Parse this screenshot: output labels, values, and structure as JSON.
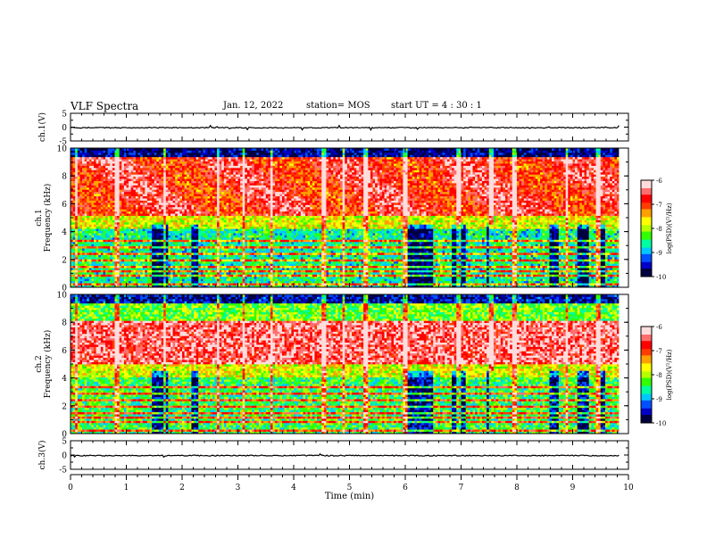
{
  "header": {
    "title": "VLF Spectra",
    "date": "Jan. 12, 2022",
    "station": "station= MOS",
    "start_ut": "start UT =  4 : 30 : 1"
  },
  "colors": {
    "scale": [
      "#000040",
      "#0000c8",
      "#0050ff",
      "#00c8ff",
      "#00ffa0",
      "#32ff00",
      "#b4ff00",
      "#ffff00",
      "#ffa000",
      "#ff3c00",
      "#ff0000",
      "#ff6e6e",
      "#ffdcdc"
    ]
  },
  "chart_data": [
    {
      "type": "line",
      "name": "ch1-waveform",
      "ylabel": "ch.1(V)",
      "ylim": [
        -5,
        5
      ],
      "yticks": [
        5,
        0,
        -5
      ],
      "x": [
        0,
        10
      ],
      "y": [
        -0.2,
        -0.2
      ],
      "xlim": [
        0,
        10
      ]
    },
    {
      "type": "heatmap",
      "name": "ch1-spectrogram",
      "ylabel": "ch.1\nFrequency (kHz)",
      "ylim": [
        0,
        10
      ],
      "yticks": [
        0,
        2,
        4,
        6,
        8,
        10
      ],
      "xlim": [
        0,
        9.83
      ],
      "colorbar": {
        "label": "log(PSD)(V²/Hz)",
        "range": [
          -10,
          -6
        ],
        "ticks": [
          -6,
          -7,
          -8,
          -9,
          -10
        ]
      }
    },
    {
      "type": "heatmap",
      "name": "ch2-spectrogram",
      "ylabel": "ch.2\nFrequency (kHz)",
      "ylim": [
        0,
        10
      ],
      "yticks": [
        0,
        2,
        4,
        6,
        8,
        10
      ],
      "xlim": [
        0,
        9.83
      ],
      "colorbar": {
        "label": "log(PSD)(V²/Hz)",
        "range": [
          -10,
          -6
        ],
        "ticks": [
          -6,
          -7,
          -8,
          -9,
          -10
        ]
      }
    },
    {
      "type": "line",
      "name": "ch3-waveform",
      "ylabel": "ch.3(V)",
      "ylim": [
        -5,
        5
      ],
      "yticks": [
        5,
        0,
        -5
      ],
      "x": [
        0,
        10
      ],
      "y": [
        -0.2,
        -0.2
      ],
      "xlim": [
        0,
        10
      ],
      "xlabel": "Time (min)",
      "xticks": [
        0,
        1,
        2,
        3,
        4,
        5,
        6,
        7,
        8,
        9,
        10
      ]
    }
  ]
}
